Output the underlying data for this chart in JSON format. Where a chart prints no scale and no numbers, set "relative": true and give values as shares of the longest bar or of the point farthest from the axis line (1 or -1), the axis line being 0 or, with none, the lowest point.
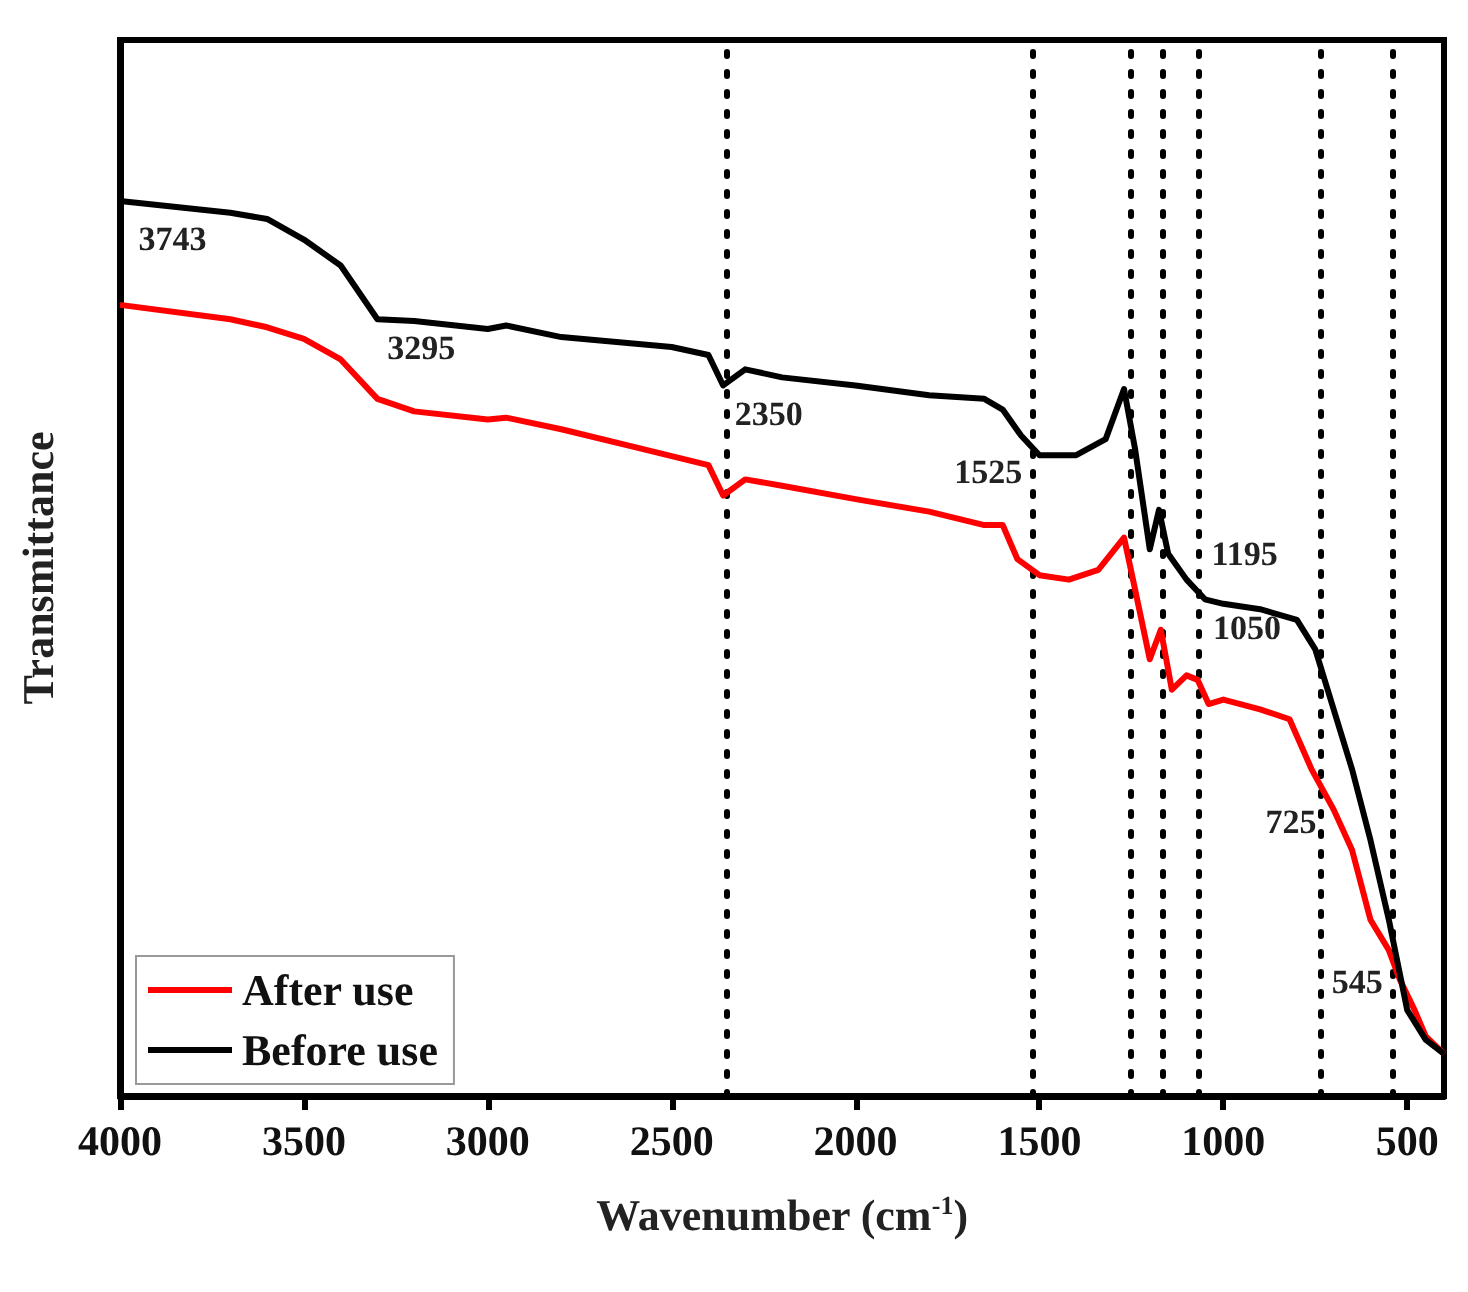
{
  "chart_data": {
    "type": "line",
    "relative": true,
    "xlabel": "Wavenumber (cm$^{-1}$)",
    "ylabel": "Transmittance",
    "xlim": [
      4000,
      400
    ],
    "xticks": [
      4000,
      3500,
      3000,
      2500,
      2000,
      1500,
      1000,
      500
    ],
    "grid": false,
    "legend": "bottom left",
    "marker": "none",
    "line_style": "solid",
    "series": [
      {
        "name": "After use",
        "color": "#ff0000",
        "x": [
          4000,
          3700,
          3600,
          3500,
          3400,
          3300,
          3200,
          3000,
          2950,
          2800,
          2600,
          2400,
          2360,
          2300,
          2200,
          2000,
          1800,
          1650,
          1600,
          1560,
          1500,
          1420,
          1340,
          1270,
          1240,
          1200,
          1170,
          1140,
          1100,
          1070,
          1040,
          1000,
          900,
          820,
          760,
          700,
          650,
          600,
          550,
          520,
          480,
          450,
          400
        ],
        "values": [
          0.884,
          0.868,
          0.859,
          0.846,
          0.823,
          0.779,
          0.765,
          0.756,
          0.758,
          0.745,
          0.725,
          0.705,
          0.671,
          0.689,
          0.682,
          0.667,
          0.653,
          0.638,
          0.638,
          0.6,
          0.582,
          0.577,
          0.588,
          0.624,
          0.566,
          0.488,
          0.521,
          0.454,
          0.47,
          0.465,
          0.438,
          0.443,
          0.432,
          0.421,
          0.365,
          0.32,
          0.275,
          0.197,
          0.163,
          0.13,
          0.096,
          0.067,
          0.047
        ]
      },
      {
        "name": "Before use",
        "color": "#000000",
        "x": [
          4000,
          3700,
          3600,
          3500,
          3400,
          3300,
          3200,
          3000,
          2950,
          2800,
          2500,
          2400,
          2360,
          2300,
          2200,
          2000,
          1800,
          1650,
          1600,
          1550,
          1500,
          1400,
          1320,
          1270,
          1240,
          1200,
          1175,
          1150,
          1100,
          1050,
          1000,
          900,
          800,
          750,
          700,
          650,
          600,
          550,
          500,
          450,
          400
        ],
        "values": [
          1.0,
          0.987,
          0.98,
          0.957,
          0.928,
          0.868,
          0.866,
          0.857,
          0.861,
          0.848,
          0.837,
          0.828,
          0.794,
          0.812,
          0.803,
          0.794,
          0.783,
          0.779,
          0.767,
          0.738,
          0.716,
          0.716,
          0.734,
          0.79,
          0.723,
          0.611,
          0.655,
          0.606,
          0.577,
          0.555,
          0.55,
          0.544,
          0.532,
          0.499,
          0.432,
          0.365,
          0.286,
          0.197,
          0.096,
          0.063,
          0.047
        ]
      }
    ],
    "ref_lines": [
      {
        "axis": "x",
        "value": 2350,
        "color": "#000000",
        "line_style": "dotted"
      },
      {
        "axis": "x",
        "value": 1520,
        "color": "#000000",
        "line_style": "dotted"
      },
      {
        "axis": "x",
        "value": 1255,
        "color": "#000000",
        "line_style": "dotted"
      },
      {
        "axis": "x",
        "value": 1165,
        "color": "#000000",
        "line_style": "dotted"
      },
      {
        "axis": "x",
        "value": 1065,
        "color": "#000000",
        "line_style": "dotted"
      },
      {
        "axis": "x",
        "value": 735,
        "color": "#000000",
        "line_style": "dotted"
      },
      {
        "axis": "x",
        "value": 540,
        "color": "#000000",
        "line_style": "dotted"
      }
    ],
    "annotations": [
      {
        "text": "3743",
        "x": 3743,
        "y": 0.99
      },
      {
        "text": "3295",
        "x": 3295,
        "y": 0.868
      },
      {
        "text": "2350",
        "x": 2350,
        "y": 0.794
      },
      {
        "text": "1525",
        "x": 1525,
        "y": 0.73
      },
      {
        "text": "1195",
        "x": 1195,
        "y": 0.611
      },
      {
        "text": "1050",
        "x": 1050,
        "y": 0.555
      },
      {
        "text": "725",
        "x": 725,
        "y": 0.339
      },
      {
        "text": "545",
        "x": 545,
        "y": 0.16
      }
    ]
  }
}
